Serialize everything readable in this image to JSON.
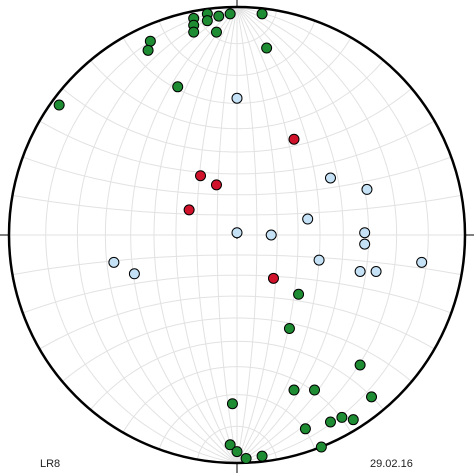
{
  "chart_data": {
    "type": "stereonet",
    "grid": true,
    "xlim": [
      -1,
      1
    ],
    "ylim": [
      -1,
      1
    ],
    "label_left": "LR8",
    "label_right": "29.02.16",
    "series": [
      {
        "color": "#1e8c32",
        "x": [
          -0.19,
          -0.13,
          -0.08,
          -0.03,
          0.11,
          -0.19,
          -0.13,
          -0.09,
          -0.19,
          -0.38,
          -0.39,
          0.13,
          -0.26,
          -0.78,
          0.27,
          0.23,
          0.54,
          0.25,
          0.34,
          0.59,
          -0.02,
          -0.03,
          0.0,
          0.04,
          0.11,
          0.3,
          0.41,
          0.46,
          0.51,
          0.37
        ],
        "y": [
          0.95,
          0.97,
          0.96,
          0.97,
          0.97,
          0.92,
          0.94,
          0.89,
          0.89,
          0.85,
          0.81,
          0.82,
          0.65,
          0.57,
          -0.26,
          -0.41,
          -0.57,
          -0.68,
          -0.68,
          -0.71,
          -0.74,
          -0.92,
          -0.95,
          -0.98,
          -0.97,
          -0.85,
          -0.82,
          -0.8,
          -0.81,
          -0.93
        ]
      },
      {
        "color": "#d0132b",
        "x": [
          0.25,
          -0.16,
          -0.09,
          -0.21,
          0.16
        ],
        "y": [
          0.42,
          0.26,
          0.22,
          0.11,
          -0.19
        ]
      },
      {
        "color": "#c4e1f5",
        "x": [
          0.0,
          0.41,
          0.57,
          0.31,
          0.0,
          0.15,
          0.56,
          0.56,
          -0.54,
          -0.45,
          0.36,
          0.54,
          0.61,
          0.81
        ],
        "y": [
          0.6,
          0.25,
          0.2,
          0.07,
          0.01,
          0.0,
          0.01,
          -0.04,
          -0.12,
          -0.17,
          -0.11,
          -0.16,
          -0.16,
          -0.12
        ]
      }
    ]
  }
}
